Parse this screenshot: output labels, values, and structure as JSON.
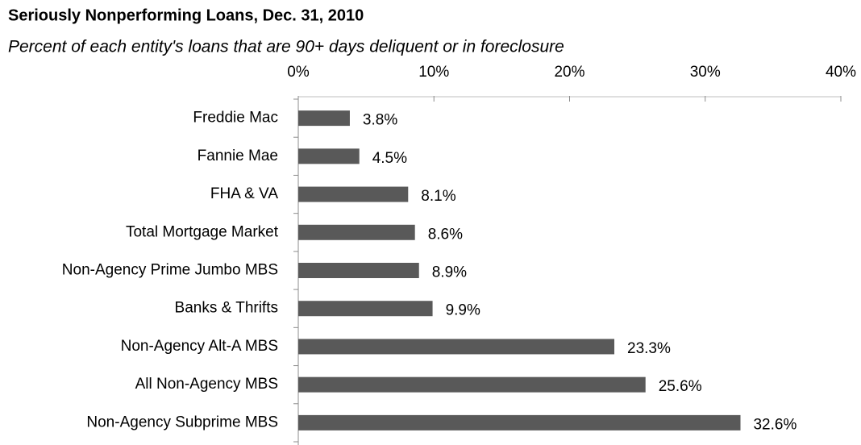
{
  "chart_data": {
    "type": "bar",
    "orientation": "horizontal",
    "title": "Seriously Nonperforming Loans, Dec. 31, 2010",
    "subtitle": "Percent of each entity's loans that are 90+ days deliquent or in foreclosure",
    "categories": [
      "Freddie Mac",
      "Fannie Mae",
      "FHA & VA",
      "Total Mortgage Market",
      "Non-Agency Prime Jumbo MBS",
      "Banks & Thrifts",
      "Non-Agency Alt-A MBS",
      "All Non-Agency MBS",
      "Non-Agency Subprime MBS"
    ],
    "values": [
      3.8,
      4.5,
      8.1,
      8.6,
      8.9,
      9.9,
      23.3,
      25.6,
      32.6
    ],
    "value_labels": [
      "3.8%",
      "4.5%",
      "8.1%",
      "8.6%",
      "8.9%",
      "9.9%",
      "23.3%",
      "25.6%",
      "32.6%"
    ],
    "color": "#595959",
    "xlim": [
      0,
      40
    ],
    "xticks": [
      {
        "value": 0,
        "label": "0%"
      },
      {
        "value": 10,
        "label": "10%"
      },
      {
        "value": 20,
        "label": "20%"
      },
      {
        "value": 30,
        "label": "30%"
      },
      {
        "value": 40,
        "label": "40%"
      }
    ],
    "grid": false
  }
}
